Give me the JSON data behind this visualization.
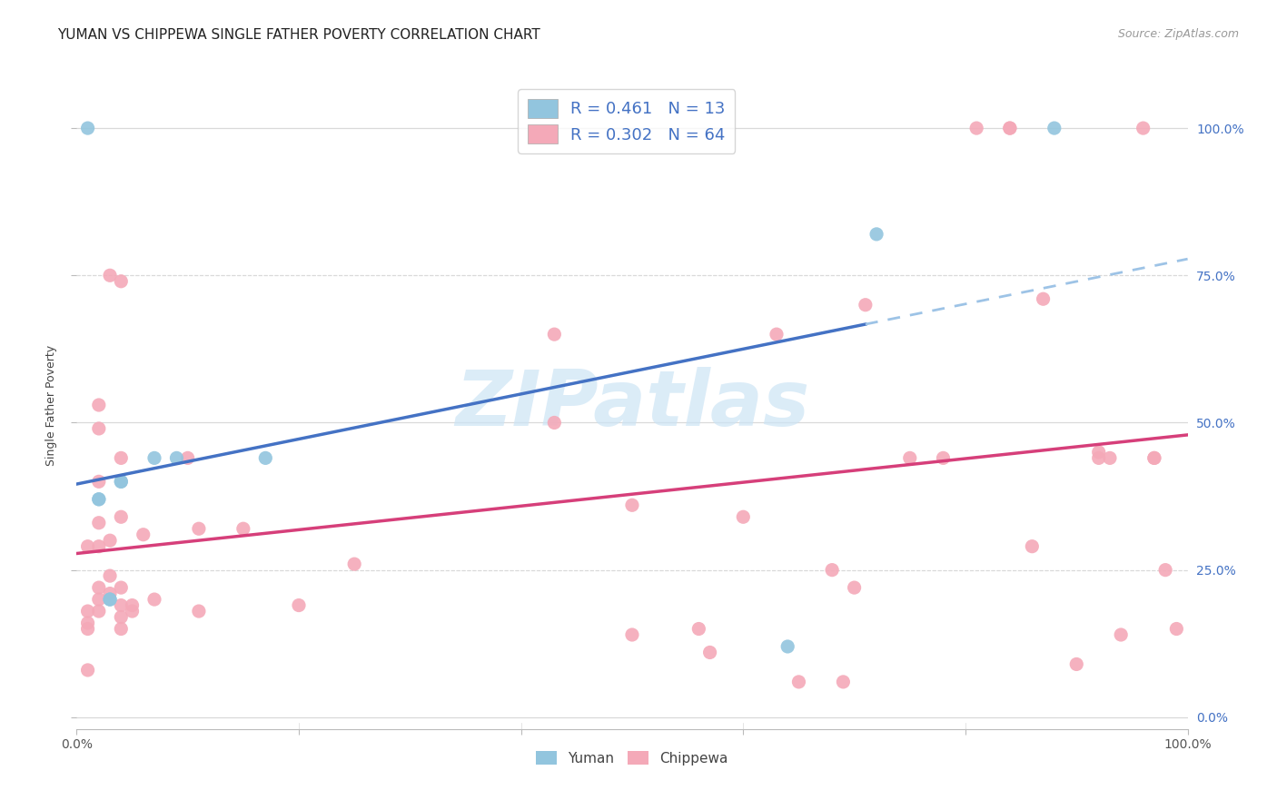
{
  "title": "YUMAN VS CHIPPEWA SINGLE FATHER POVERTY CORRELATION CHART",
  "source": "Source: ZipAtlas.com",
  "ylabel": "Single Father Poverty",
  "legend_yuman": "R = 0.461   N = 13",
  "legend_chippewa": "R = 0.302   N = 64",
  "yuman_color": "#92c5de",
  "chippewa_color": "#f4a9b8",
  "trend_yuman_color": "#4472c4",
  "trend_chippewa_color": "#d63f7a",
  "trend_yuman_dashed_color": "#9dc3e6",
  "watermark_color": "#cce4f5",
  "yuman_points": [
    [
      0.01,
      1.0
    ],
    [
      0.02,
      0.37
    ],
    [
      0.02,
      0.37
    ],
    [
      0.03,
      0.2
    ],
    [
      0.03,
      0.2
    ],
    [
      0.04,
      0.4
    ],
    [
      0.04,
      0.4
    ],
    [
      0.07,
      0.44
    ],
    [
      0.09,
      0.44
    ],
    [
      0.17,
      0.44
    ],
    [
      0.64,
      0.12
    ],
    [
      0.72,
      0.82
    ],
    [
      0.88,
      1.0
    ]
  ],
  "chippewa_points": [
    [
      0.01,
      0.29
    ],
    [
      0.01,
      0.18
    ],
    [
      0.01,
      0.16
    ],
    [
      0.01,
      0.15
    ],
    [
      0.01,
      0.08
    ],
    [
      0.02,
      0.53
    ],
    [
      0.02,
      0.49
    ],
    [
      0.02,
      0.4
    ],
    [
      0.02,
      0.33
    ],
    [
      0.02,
      0.29
    ],
    [
      0.02,
      0.22
    ],
    [
      0.02,
      0.2
    ],
    [
      0.02,
      0.18
    ],
    [
      0.03,
      0.75
    ],
    [
      0.03,
      0.3
    ],
    [
      0.03,
      0.24
    ],
    [
      0.03,
      0.21
    ],
    [
      0.04,
      0.74
    ],
    [
      0.04,
      0.44
    ],
    [
      0.04,
      0.34
    ],
    [
      0.04,
      0.22
    ],
    [
      0.04,
      0.19
    ],
    [
      0.04,
      0.17
    ],
    [
      0.04,
      0.15
    ],
    [
      0.05,
      0.19
    ],
    [
      0.05,
      0.18
    ],
    [
      0.06,
      0.31
    ],
    [
      0.07,
      0.2
    ],
    [
      0.1,
      0.44
    ],
    [
      0.11,
      0.32
    ],
    [
      0.11,
      0.18
    ],
    [
      0.15,
      0.32
    ],
    [
      0.2,
      0.19
    ],
    [
      0.25,
      0.26
    ],
    [
      0.43,
      0.65
    ],
    [
      0.43,
      0.5
    ],
    [
      0.5,
      0.36
    ],
    [
      0.5,
      0.14
    ],
    [
      0.56,
      0.15
    ],
    [
      0.57,
      0.11
    ],
    [
      0.6,
      0.34
    ],
    [
      0.63,
      0.65
    ],
    [
      0.65,
      0.06
    ],
    [
      0.68,
      0.25
    ],
    [
      0.69,
      0.06
    ],
    [
      0.7,
      0.22
    ],
    [
      0.71,
      0.7
    ],
    [
      0.75,
      0.44
    ],
    [
      0.78,
      0.44
    ],
    [
      0.81,
      1.0
    ],
    [
      0.84,
      1.0
    ],
    [
      0.84,
      1.0
    ],
    [
      0.86,
      0.29
    ],
    [
      0.87,
      0.71
    ],
    [
      0.9,
      0.09
    ],
    [
      0.92,
      0.45
    ],
    [
      0.92,
      0.44
    ],
    [
      0.93,
      0.44
    ],
    [
      0.94,
      0.14
    ],
    [
      0.96,
      1.0
    ],
    [
      0.97,
      0.44
    ],
    [
      0.97,
      0.44
    ],
    [
      0.98,
      0.25
    ],
    [
      0.99,
      0.15
    ]
  ],
  "xlim": [
    0.0,
    1.0
  ],
  "ylim": [
    -0.02,
    1.08
  ],
  "yticks": [
    0.0,
    0.25,
    0.5,
    0.75,
    1.0
  ],
  "ytick_labels": [
    "0.0%",
    "25.0%",
    "50.0%",
    "75.0%",
    "100.0%"
  ],
  "xtick_positions": [
    0.0,
    0.2,
    0.4,
    0.6,
    0.8,
    1.0
  ],
  "xtick_labels": [
    "0.0%",
    "",
    "",
    "",
    "",
    "100.0%"
  ],
  "grid_color": "#d9d9d9",
  "background_color": "#ffffff",
  "title_fontsize": 11,
  "axis_label_fontsize": 9,
  "tick_fontsize": 10,
  "legend_fontsize": 13
}
